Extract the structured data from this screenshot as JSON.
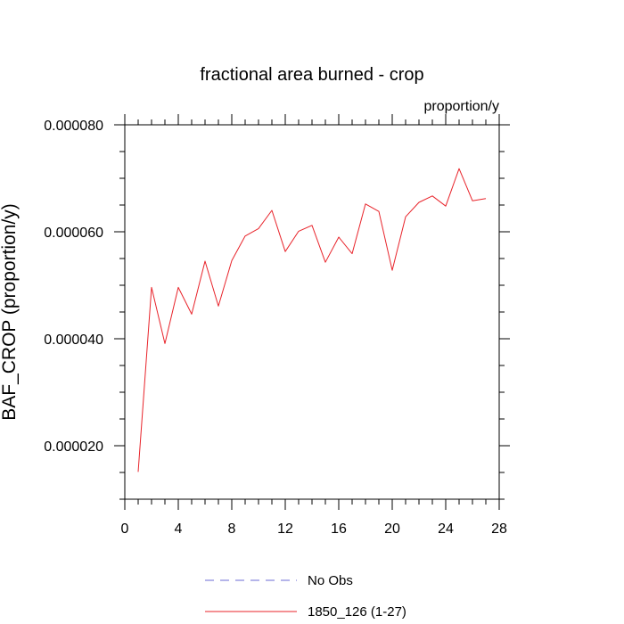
{
  "chart_data": {
    "type": "line",
    "title": "fractional area burned - crop",
    "units_label": "proportion/y",
    "ylabel": "BAF_CROP  (proportion/y)",
    "xlabel": "",
    "xlim": [
      0,
      28
    ],
    "ylim": [
      1e-05,
      8e-05
    ],
    "x_ticks": [
      "0",
      "4",
      "8",
      "12",
      "16",
      "20",
      "24",
      "28"
    ],
    "y_ticks": [
      "0.000020",
      "0.000040",
      "0.000060",
      "0.000080"
    ],
    "grid": false,
    "legend_position": "bottom",
    "series": [
      {
        "name": "1850_126 (1-27)",
        "color": "#e8232a",
        "style": "solid",
        "x": [
          1,
          2,
          3,
          4,
          5,
          6,
          7,
          8,
          9,
          10,
          11,
          12,
          13,
          14,
          15,
          16,
          17,
          18,
          19,
          20,
          21,
          22,
          23,
          24,
          25,
          26,
          27
        ],
        "values": [
          1.51e-05,
          4.96e-05,
          3.91e-05,
          4.96e-05,
          4.46e-05,
          5.45e-05,
          4.61e-05,
          5.46e-05,
          5.92e-05,
          6.06e-05,
          6.4e-05,
          5.63e-05,
          6.01e-05,
          6.12e-05,
          5.43e-05,
          5.9e-05,
          5.59e-05,
          6.52e-05,
          6.38e-05,
          5.28e-05,
          6.28e-05,
          6.55e-05,
          6.67e-05,
          6.48e-05,
          7.18e-05,
          6.58e-05,
          6.62e-05
        ]
      }
    ],
    "legend": [
      {
        "name": "No Obs",
        "color": "#6b6bd6",
        "style": "dashed"
      },
      {
        "name": "1850_126 (1-27)",
        "color": "#e8232a",
        "style": "solid"
      }
    ]
  }
}
